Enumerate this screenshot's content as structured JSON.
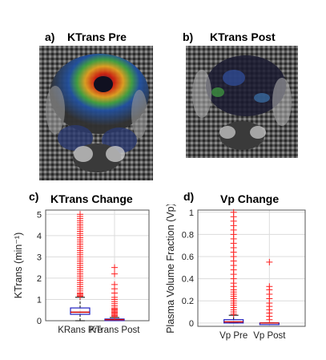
{
  "panels": {
    "a": {
      "label": "a)",
      "title": "KTrans Pre"
    },
    "b": {
      "label": "b)",
      "title": "KTrans Post"
    },
    "c": {
      "label": "c)",
      "title": "KTrans Change"
    },
    "d": {
      "label": "d)",
      "title": "Vp Change"
    }
  },
  "chart_data": [
    {
      "type": "box",
      "ylabel": "KTrans (min⁻¹)",
      "ylim": [
        0,
        5.2
      ],
      "yticks": [
        0,
        1,
        2,
        3,
        4,
        5
      ],
      "grid": true,
      "categories": [
        "KRans Pre",
        "KTrans Post"
      ],
      "boxes": [
        {
          "category": "KRans Pre",
          "whisker_low": 0.0,
          "q1": 0.3,
          "median": 0.4,
          "q3": 0.6,
          "whisker_high": 1.1,
          "outliers": [
            1.15,
            1.2,
            1.25,
            1.3,
            1.4,
            1.5,
            1.6,
            1.7,
            1.8,
            1.9,
            2.0,
            2.1,
            2.2,
            2.3,
            2.4,
            2.5,
            2.6,
            2.7,
            2.8,
            2.9,
            3.0,
            3.1,
            3.2,
            3.3,
            3.4,
            3.5,
            3.6,
            3.7,
            3.8,
            3.9,
            4.0,
            4.1,
            4.2,
            4.3,
            4.4,
            4.5,
            4.6,
            4.7,
            4.8,
            4.9,
            5.0
          ]
        },
        {
          "category": "KTrans Post",
          "whisker_low": 0.0,
          "q1": 0.03,
          "median": 0.05,
          "q3": 0.08,
          "whisker_high": 0.15,
          "outliers": [
            0.2,
            0.25,
            0.3,
            0.35,
            0.4,
            0.45,
            0.5,
            0.55,
            0.6,
            0.7,
            0.8,
            0.9,
            1.0,
            1.1,
            1.3,
            1.5,
            1.7,
            2.2,
            2.5
          ]
        }
      ]
    },
    {
      "type": "box",
      "ylabel": "Plasma Volume Fraction (Vp)",
      "ylim": [
        -0.03,
        1.02
      ],
      "yticks": [
        0,
        0.2,
        0.4,
        0.6,
        0.8,
        1
      ],
      "ytick_labels": [
        "0",
        "0.2",
        "0.4",
        "0.6",
        "0.8",
        "1"
      ],
      "grid": true,
      "categories": [
        "Vp Pre",
        "Vp Post"
      ],
      "boxes": [
        {
          "category": "Vp Pre",
          "whisker_low": 0.0,
          "q1": 0.0,
          "median": 0.01,
          "q3": 0.03,
          "whisker_high": 0.07,
          "outliers": [
            0.08,
            0.1,
            0.12,
            0.14,
            0.16,
            0.18,
            0.2,
            0.22,
            0.24,
            0.26,
            0.28,
            0.3,
            0.33,
            0.36,
            0.4,
            0.44,
            0.48,
            0.52,
            0.56,
            0.6,
            0.64,
            0.68,
            0.72,
            0.76,
            0.8,
            0.84,
            0.88,
            0.92,
            0.96,
            1.0
          ]
        },
        {
          "category": "Vp Post",
          "whisker_low": 0.0,
          "q1": 0.0,
          "median": 0.0,
          "q3": 0.0,
          "whisker_high": 0.0,
          "outliers": [
            0.03,
            0.06,
            0.09,
            0.12,
            0.15,
            0.18,
            0.22,
            0.26,
            0.3,
            0.33,
            0.55
          ]
        }
      ]
    }
  ]
}
